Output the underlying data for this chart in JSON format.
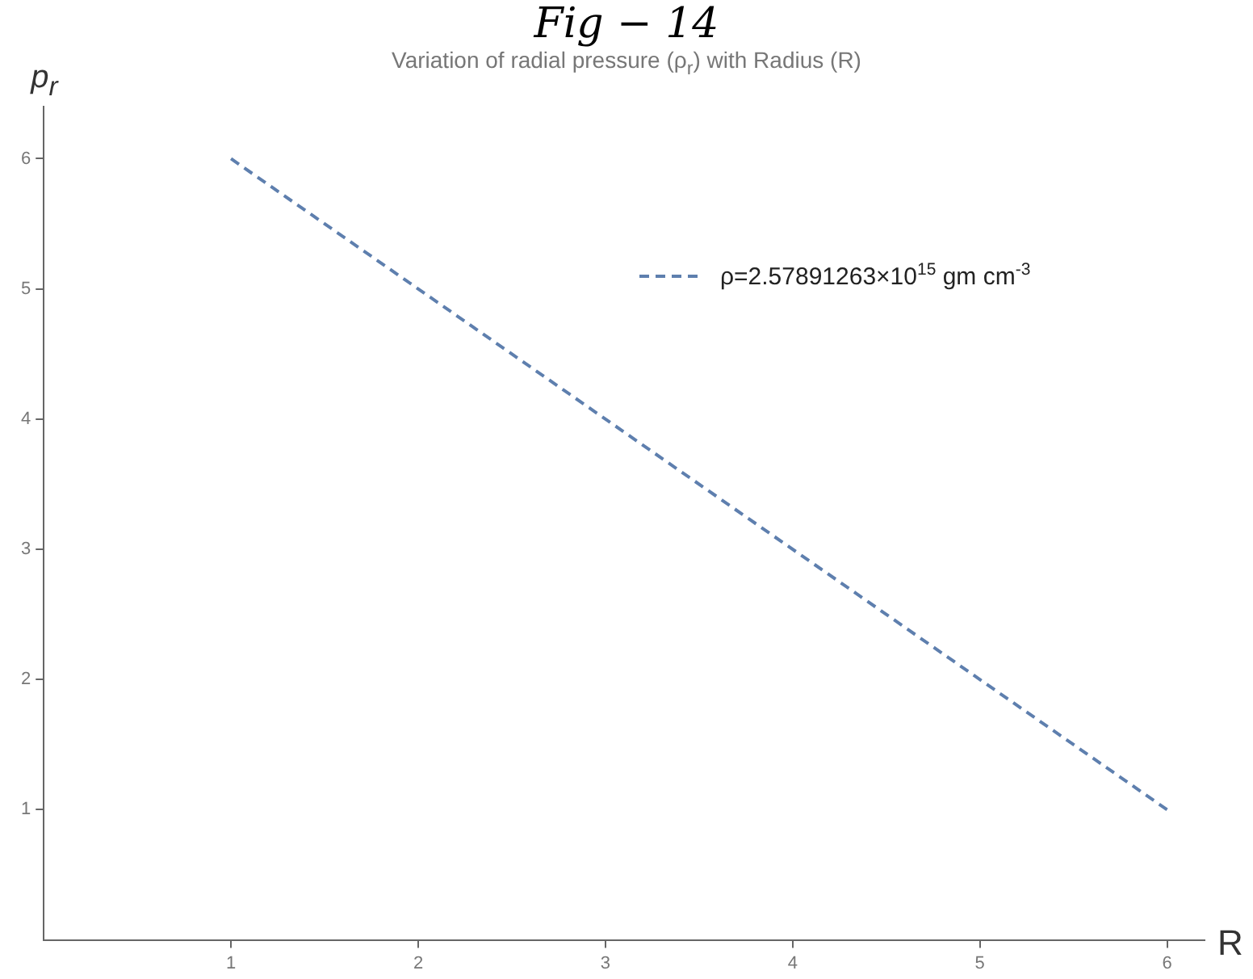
{
  "chart_data": {
    "type": "line",
    "title": "Fig − 14",
    "subtitle": "Variation of radial pressure (ρ$_{r}$) with Radius (R)",
    "xlabel": "R",
    "ylabel": "p$_{r}$",
    "x": [
      1,
      6
    ],
    "series": [
      {
        "name": "ρ=2.57891263×10$^{15}$ gm cm$^{-3}$",
        "color": "#5e7fae",
        "values": [
          6,
          1
        ]
      }
    ],
    "xlim": [
      0,
      6.2
    ],
    "xticks": [
      1,
      2,
      3,
      4,
      5,
      6
    ],
    "ylim": [
      0,
      6.4
    ],
    "yticks": [
      1,
      2,
      3,
      4,
      5,
      6
    ],
    "grid": false,
    "legend": "top right",
    "marker": "none",
    "line_style": "dashed"
  }
}
